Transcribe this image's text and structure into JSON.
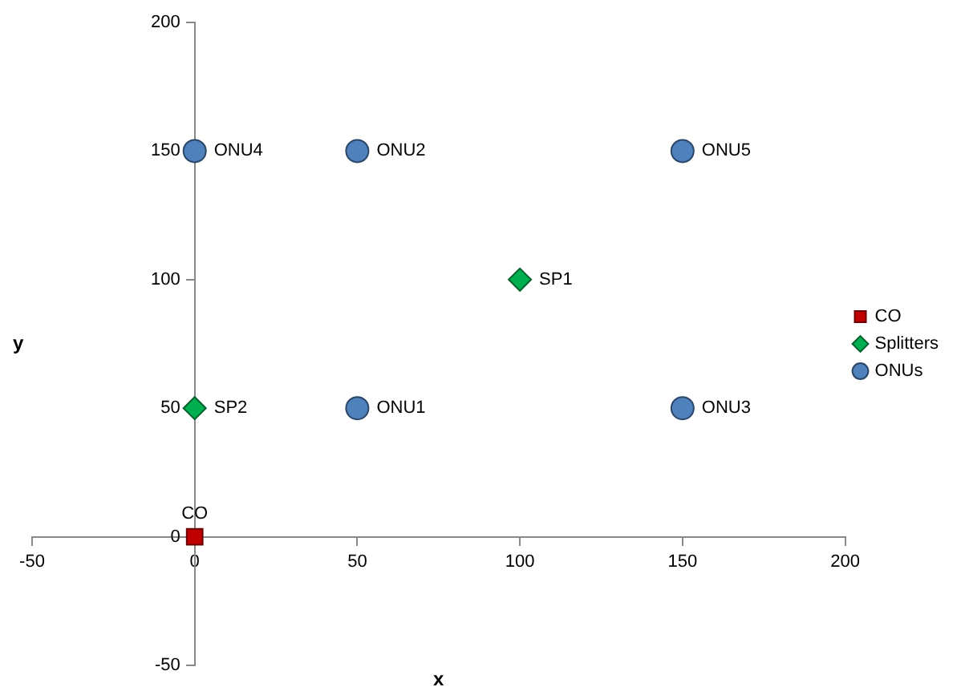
{
  "chart_data": {
    "type": "scatter",
    "xlabel": "x",
    "ylabel": "y",
    "xlim": [
      -50,
      200
    ],
    "xticks": [
      -50,
      0,
      50,
      100,
      150,
      200
    ],
    "ylim": [
      -50,
      200
    ],
    "yticks": [
      -50,
      0,
      50,
      100,
      150,
      200
    ],
    "grid": false,
    "legend": "right",
    "series": [
      {
        "name": "CO",
        "color": "#c00000",
        "marker": "square",
        "x": [
          0
        ],
        "values": [
          0
        ],
        "value_labels": [
          "CO"
        ]
      },
      {
        "name": "Splitters",
        "color": "#00b050",
        "marker": "diamond",
        "x": [
          100,
          0
        ],
        "values": [
          100,
          50
        ],
        "value_labels": [
          "SP1",
          "SP2"
        ]
      },
      {
        "name": "ONUs",
        "color": "#4f81bd",
        "marker": "circle",
        "x": [
          50,
          50,
          150,
          0,
          150
        ],
        "values": [
          50,
          150,
          50,
          150,
          150
        ],
        "value_labels": [
          "ONU1",
          "ONU2",
          "ONU3",
          "ONU4",
          "ONU5"
        ]
      }
    ]
  }
}
